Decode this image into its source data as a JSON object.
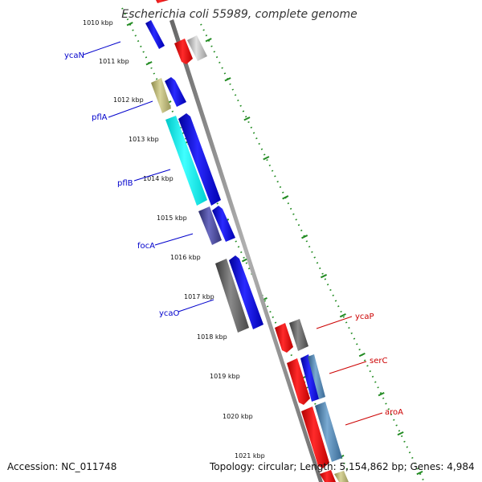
{
  "title": "Escherichia coli 55989, complete genome",
  "ticks": [
    "1010 kbp",
    "1011 kbp",
    "1012 kbp",
    "1013 kbp",
    "1014 kbp",
    "1015 kbp",
    "1016 kbp",
    "1017 kbp",
    "1018 kbp",
    "1019 kbp",
    "1020 kbp",
    "1021 kbp"
  ],
  "gene_labels": [
    {
      "name": "ycaN",
      "strand": "minus",
      "color": "#0000cc"
    },
    {
      "name": "pflA",
      "strand": "minus",
      "color": "#0000cc"
    },
    {
      "name": "pflB",
      "strand": "minus",
      "color": "#0000cc"
    },
    {
      "name": "focA",
      "strand": "minus",
      "color": "#0000cc"
    },
    {
      "name": "ycaO",
      "strand": "minus",
      "color": "#0000cc"
    },
    {
      "name": "ycaP",
      "strand": "plus",
      "color": "#cc0000"
    },
    {
      "name": "serC",
      "strand": "plus",
      "color": "#cc0000"
    },
    {
      "name": "aroA",
      "strand": "plus",
      "color": "#cc0000"
    }
  ],
  "colors": {
    "backbone": "#888888",
    "ticks": "#228b22",
    "forward_cds": "#0000ff",
    "reverse_cds": "#ff0000"
  },
  "footer": {
    "accession": "Accession: NC_011748",
    "summary": "Topology: circular; Length: 5,154,862 bp; Genes: 4,984"
  }
}
